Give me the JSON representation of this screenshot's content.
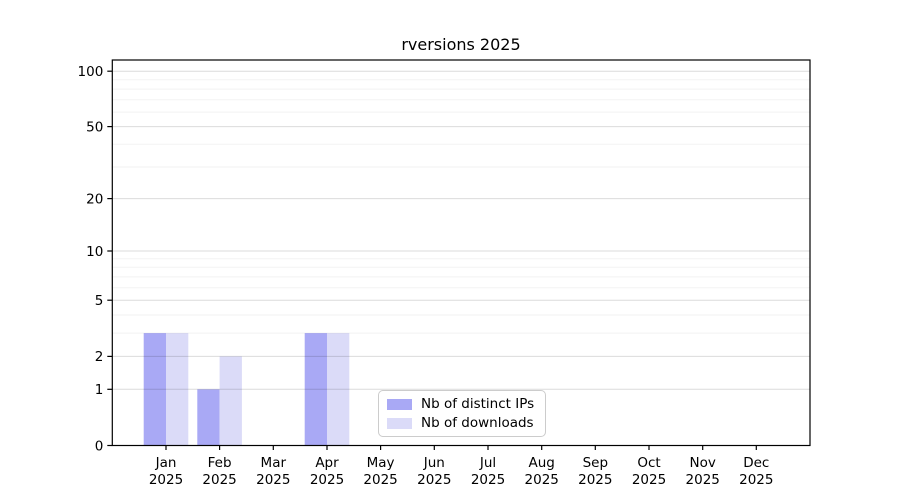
{
  "chart_data": {
    "type": "bar",
    "title": "rversions 2025",
    "categories": [
      "Jan",
      "Feb",
      "Mar",
      "Apr",
      "May",
      "Jun",
      "Jul",
      "Aug",
      "Sep",
      "Oct",
      "Nov",
      "Dec"
    ],
    "category_year": "2025",
    "series": [
      {
        "name": "Nb of distinct IPs",
        "color": "#a9a9f5",
        "values": [
          3,
          1,
          0,
          3,
          0,
          0,
          0,
          0,
          0,
          0,
          0,
          0
        ]
      },
      {
        "name": "Nb of downloads",
        "color": "#dbdbf8",
        "values": [
          3,
          2,
          0,
          3,
          0,
          0,
          0,
          0,
          0,
          0,
          0,
          0
        ]
      }
    ],
    "yscale": "log1p",
    "ylim": [
      0,
      115
    ],
    "y_major_ticks": [
      100,
      50,
      20,
      10,
      5,
      2,
      1,
      0
    ],
    "y_minor_ticks": [
      3,
      4,
      6,
      7,
      8,
      9,
      30,
      40,
      60,
      70,
      80,
      90
    ],
    "xlabel": "",
    "ylabel": "",
    "grid": "horizontal",
    "legend_position": "lower-center"
  },
  "colors": {
    "background": "#ffffff",
    "axis": "#000000",
    "tick_text": "#000000",
    "major_grid": "rgba(0,0,0,0.14)",
    "minor_grid": "rgba(0,0,0,0.05)",
    "legend_border": "#cccccc"
  }
}
